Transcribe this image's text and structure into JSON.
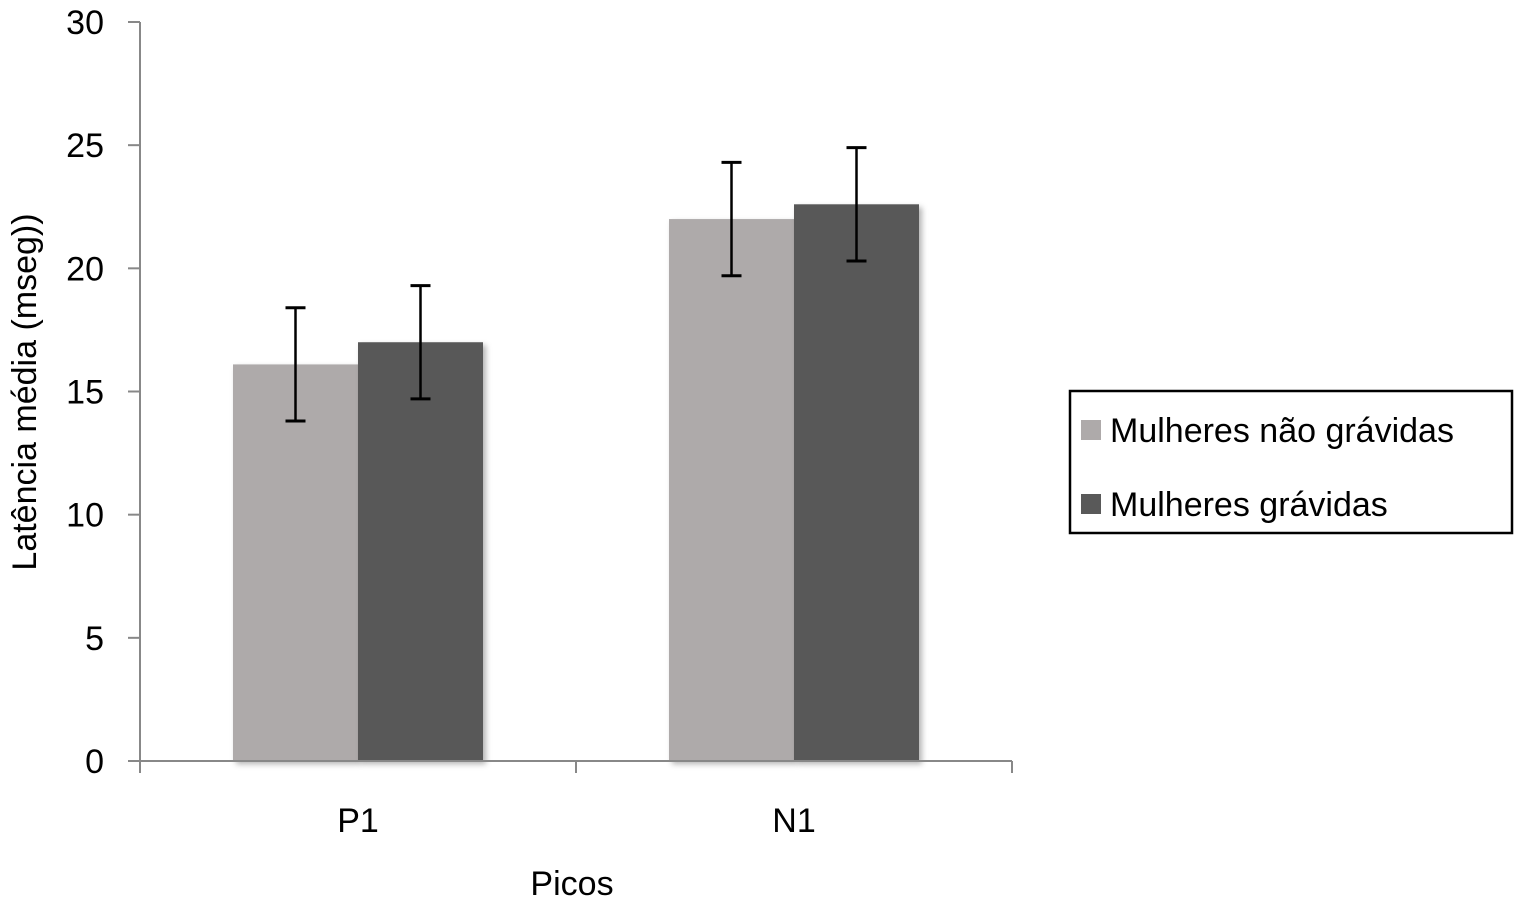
{
  "chart_data": {
    "type": "bar",
    "title": "",
    "xlabel": "Picos",
    "ylabel": "Latência média (mseg))",
    "ylim": [
      0,
      30
    ],
    "yticks": [
      0,
      5,
      10,
      15,
      20,
      25,
      30
    ],
    "categories": [
      "P1",
      "N1"
    ],
    "series": [
      {
        "name": "Mulheres não grávidas",
        "color": "#aeaaaa",
        "values": [
          16.1,
          22.0
        ],
        "errors": [
          2.3,
          2.3
        ]
      },
      {
        "name": "Mulheres grávidas",
        "color": "#595959",
        "values": [
          17.0,
          22.6
        ],
        "errors": [
          2.3,
          2.3
        ]
      }
    ],
    "grid": false,
    "legend_position": "right"
  }
}
